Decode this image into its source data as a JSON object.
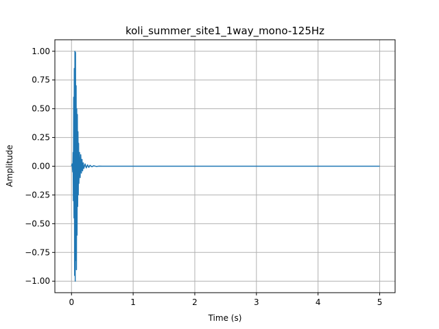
{
  "chart_data": {
    "type": "line",
    "title": "koli_summer_site1_1way_mono-125Hz",
    "xlabel": "Time (s)",
    "ylabel": "Amplitude",
    "xlim": [
      -0.27,
      5.25
    ],
    "ylim": [
      -1.1,
      1.1
    ],
    "xticks": [
      0,
      1,
      2,
      3,
      4,
      5
    ],
    "xtick_labels": [
      "0",
      "1",
      "2",
      "3",
      "4",
      "5"
    ],
    "yticks": [
      1.0,
      0.75,
      0.5,
      0.25,
      0.0,
      -0.25,
      -0.5,
      -0.75,
      -1.0
    ],
    "ytick_labels": [
      "1.00",
      "0.75",
      "0.50",
      "0.25",
      "0.00",
      "−0.25",
      "−0.50",
      "−0.75",
      "−1.00"
    ],
    "grid": true,
    "line_color": "#1f77b4",
    "series": [
      {
        "x": [
          0.0,
          0.01,
          0.02,
          0.025,
          0.03,
          0.035,
          0.04,
          0.045,
          0.05,
          0.055,
          0.06,
          0.065,
          0.07,
          0.075,
          0.08,
          0.085,
          0.09,
          0.095,
          0.1,
          0.105,
          0.11,
          0.115,
          0.12,
          0.13,
          0.14,
          0.15,
          0.16,
          0.17,
          0.18,
          0.19,
          0.2,
          0.22,
          0.24,
          0.26,
          0.28,
          0.3,
          0.33,
          0.36,
          0.4,
          0.45,
          0.5,
          1.0,
          2.0,
          3.0,
          4.0,
          5.0
        ],
        "y": [
          0.0,
          0.02,
          -0.05,
          0.12,
          -0.3,
          0.6,
          -0.45,
          0.85,
          -0.95,
          1.0,
          -1.0,
          0.99,
          -0.82,
          0.7,
          -0.9,
          0.5,
          -0.6,
          0.45,
          -0.35,
          0.3,
          -0.25,
          0.2,
          -0.15,
          0.12,
          -0.1,
          0.1,
          -0.06,
          0.06,
          -0.04,
          0.03,
          -0.02,
          0.02,
          -0.015,
          0.012,
          -0.01,
          0.008,
          -0.005,
          0.004,
          -0.002,
          0.001,
          0.0,
          0.0,
          0.0,
          0.0,
          0.0,
          0.0
        ]
      }
    ]
  }
}
